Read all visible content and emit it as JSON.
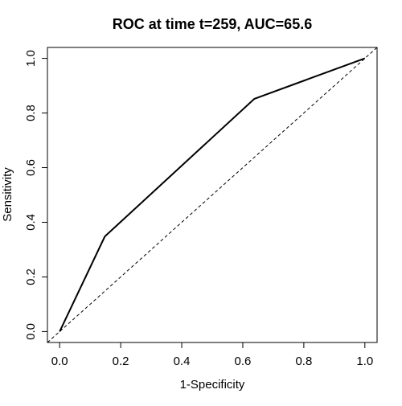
{
  "chart_data": {
    "type": "line",
    "title": "ROC at time t=259, AUC=65.6",
    "xlabel": "1-Specificity",
    "ylabel": "Sensitivity",
    "xlim": [
      -0.04,
      1.04
    ],
    "ylim": [
      -0.04,
      1.04
    ],
    "x_ticks": [
      0.0,
      0.2,
      0.4,
      0.6,
      0.8,
      1.0
    ],
    "x_tick_labels": [
      "0.0",
      "0.2",
      "0.4",
      "0.6",
      "0.8",
      "1.0"
    ],
    "y_ticks": [
      0.0,
      0.2,
      0.4,
      0.6,
      0.8,
      1.0
    ],
    "y_tick_labels": [
      "0.0",
      "0.2",
      "0.4",
      "0.6",
      "0.8",
      "1.0"
    ],
    "grid": false,
    "series": [
      {
        "x": [
          0.0,
          0.148,
          0.638,
          1.0
        ],
        "y": [
          0.0,
          0.348,
          0.852,
          1.0
        ],
        "style": "solid",
        "color": "#000000"
      }
    ],
    "reference_line": {
      "x": [
        -0.04,
        1.04
      ],
      "y": [
        -0.04,
        1.04
      ],
      "style": "dashed",
      "color": "#000000"
    }
  }
}
